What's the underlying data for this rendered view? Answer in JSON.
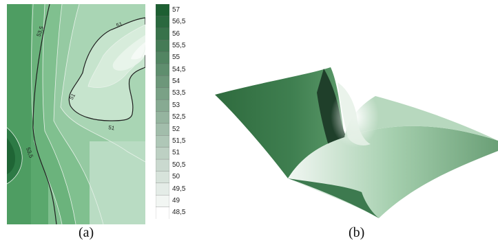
{
  "figure": {
    "caption_a": "(a)",
    "caption_b": "(b)"
  },
  "panel_a": {
    "contour_labels": [
      "53,5",
      "51",
      "51",
      "51",
      "53,5"
    ]
  },
  "colorbar": {
    "levels": [
      "57",
      "56,5",
      "56",
      "55,5",
      "55",
      "54,5",
      "54",
      "53,5",
      "53",
      "52,5",
      "52",
      "51,5",
      "51",
      "50,5",
      "50",
      "49,5",
      "49",
      "48,5"
    ],
    "color_dark": "#1d5f32",
    "color_light": "#ffffff"
  }
}
